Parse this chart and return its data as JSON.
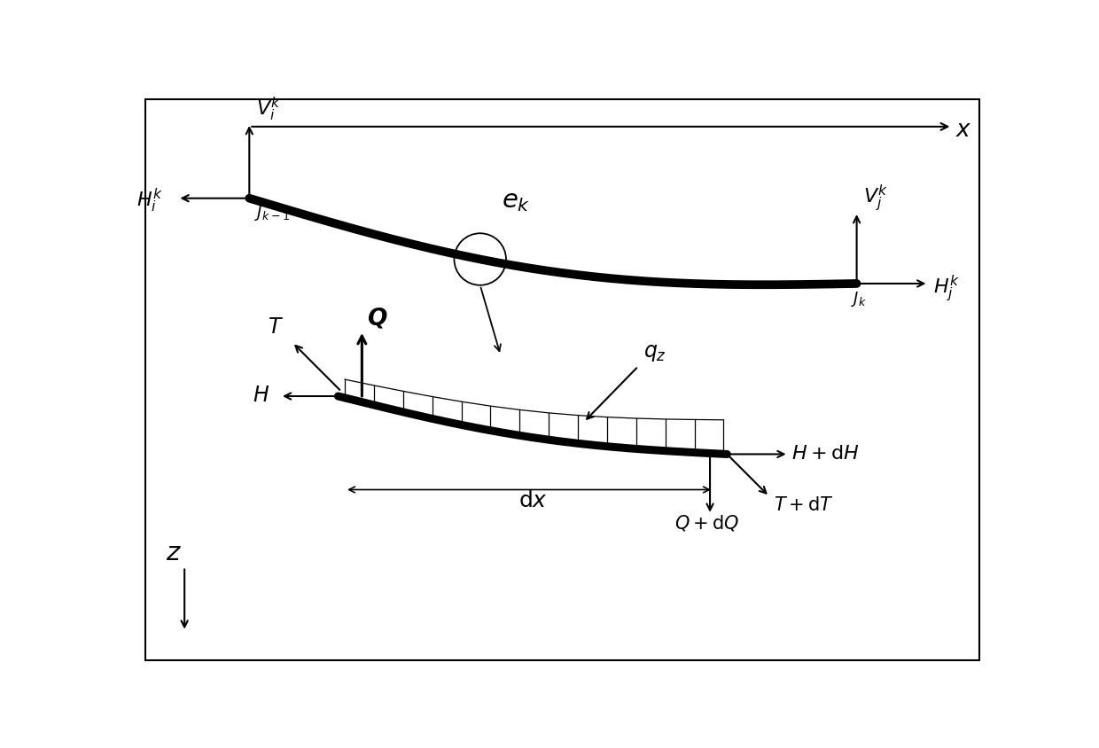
{
  "bg_color": "#ffffff",
  "fig_width": 12.4,
  "fig_height": 8.44,
  "dpi": 100,
  "cable_color": "#000000",
  "cable_lw": 7,
  "text_color": "#000000",
  "xlim": [
    0,
    12.4
  ],
  "ylim": [
    0,
    8.44
  ],
  "upper_cable_x1": 1.6,
  "upper_cable_x2": 10.5,
  "upper_cable_y1": 6.85,
  "upper_cable_y2": 5.6,
  "upper_cable_sag": -0.45,
  "lower_cable_x1": 2.9,
  "lower_cable_x2": 8.6,
  "lower_cable_y1": 3.95,
  "lower_cable_y2": 3.1,
  "lower_cable_sag": -0.18,
  "circle_t": 0.38,
  "circle_r": 0.38
}
